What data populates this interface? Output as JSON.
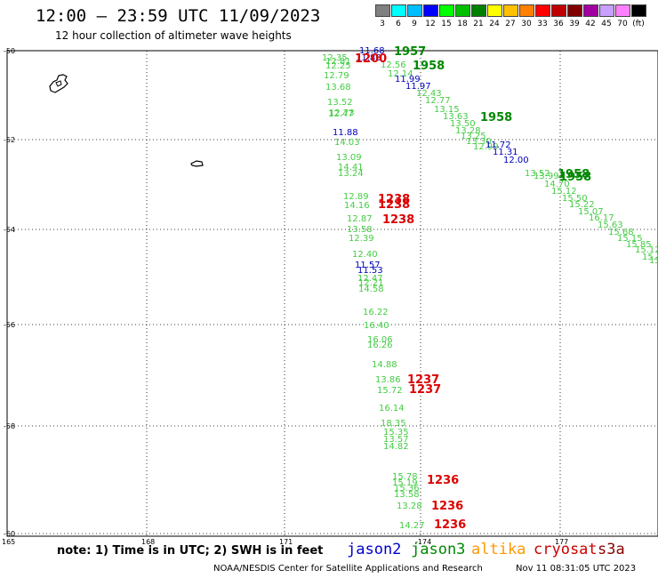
{
  "title": "12:00 – 23:59 UTC 11/09/2023",
  "subtitle": "12 hour collection of altimeter wave heights",
  "legend": {
    "unit": "(ft)",
    "items": [
      {
        "label": "3",
        "color": "#808080"
      },
      {
        "label": "6",
        "color": "#00ffff"
      },
      {
        "label": "9",
        "color": "#00bfff"
      },
      {
        "label": "12",
        "color": "#0000ff"
      },
      {
        "label": "15",
        "color": "#00ff00"
      },
      {
        "label": "18",
        "color": "#00c000"
      },
      {
        "label": "21",
        "color": "#008000"
      },
      {
        "label": "24",
        "color": "#ffff00"
      },
      {
        "label": "27",
        "color": "#ffc000"
      },
      {
        "label": "30",
        "color": "#ff8000"
      },
      {
        "label": "33",
        "color": "#ff0000"
      },
      {
        "label": "36",
        "color": "#c00000"
      },
      {
        "label": "39",
        "color": "#800000"
      },
      {
        "label": "42",
        "color": "#a000a0"
      },
      {
        "label": "45",
        "color": "#c8a0ff"
      },
      {
        "label": "70",
        "color": "#ff80ff"
      },
      {
        "label": "",
        "color": "#000000"
      }
    ]
  },
  "axes": {
    "lat_labels": [
      "-50",
      "-52",
      "-54",
      "-56",
      "-58",
      "-60"
    ],
    "lon_labels": [
      "165",
      "168",
      "171",
      "-174",
      "177"
    ]
  },
  "note": "note: 1) Time is in UTC; 2) SWH is in feet",
  "satellites": [
    {
      "name": "jason2",
      "color": "#0000cc"
    },
    {
      "name": "jason3",
      "color": "#008800"
    },
    {
      "name": "altika",
      "color": "#ff9900"
    },
    {
      "name": "cryosat",
      "color": "#cc0000"
    },
    {
      "name": "s3a",
      "color": "#880000"
    }
  ],
  "credit": "NOAA/NESDIS Center for Satellite Applications and Research",
  "timestamp": "Nov 11 08:31:05 UTC 2023",
  "track_west": {
    "color": "#44cc44",
    "values": [
      "12.35",
      "12.81",
      "12.25",
      "12.79",
      "13.68",
      "13.52",
      "12.73",
      "12.47",
      "11.88",
      "14.03",
      "13.09",
      "14.41",
      "13.24",
      "12.89",
      "14.16",
      "12.87",
      "13.58",
      "12.39",
      "12.40",
      "11.57",
      "11.53",
      "12.47",
      "12.21",
      "14.58",
      "16.22",
      "16.40",
      "16.06",
      "16.26",
      "14.88",
      "13.86",
      "15.72",
      "16.14",
      "18.35",
      "15.35",
      "13.57",
      "14.82",
      "15.78",
      "15.19",
      "15.36",
      "13.58",
      "13.28",
      "14.27"
    ]
  },
  "track_east": {
    "color": "#44cc44",
    "values": [
      "11.68",
      "11.88",
      "12.56",
      "12.14",
      "11.99",
      "11.97",
      "12.43",
      "12.77",
      "13.15",
      "13.63",
      "13.50",
      "13.28",
      "13.25",
      "13.30",
      "12.99",
      "11.72",
      "11.31",
      "12.00",
      "13.52",
      "13.99",
      "14.70",
      "15.12",
      "15.50",
      "15.22",
      "15.07",
      "16.17",
      "15.63",
      "15.68",
      "15.15",
      "15.85",
      "15.12",
      "15.47",
      "15.56"
    ]
  },
  "time_labels": [
    {
      "text": "1957",
      "color": "#008800"
    },
    {
      "text": "1200",
      "color": "#dd0000"
    },
    {
      "text": "1958",
      "color": "#008800"
    },
    {
      "text": "1958",
      "color": "#008800"
    },
    {
      "text": "1958",
      "color": "#008800"
    },
    {
      "text": "1958",
      "color": "#008800"
    },
    {
      "text": "1238",
      "color": "#dd0000"
    },
    {
      "text": "1238",
      "color": "#dd0000"
    },
    {
      "text": "1238",
      "color": "#dd0000"
    },
    {
      "text": "1237",
      "color": "#dd0000"
    },
    {
      "text": "1237",
      "color": "#dd0000"
    },
    {
      "text": "1236",
      "color": "#dd0000"
    },
    {
      "text": "1236",
      "color": "#dd0000"
    },
    {
      "text": "1236",
      "color": "#dd0000"
    }
  ]
}
